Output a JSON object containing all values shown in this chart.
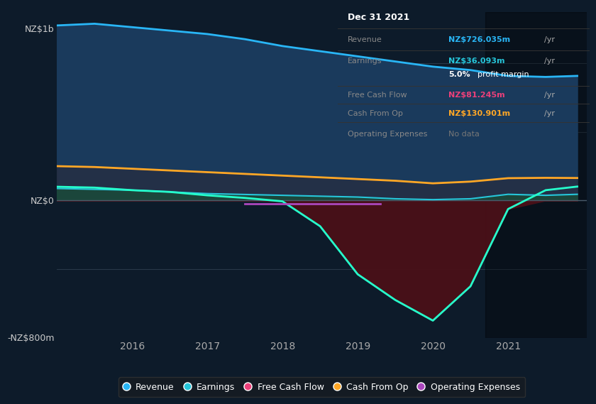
{
  "bg_color": "#0d1b2a",
  "plot_bg_color": "#0d1b2a",
  "ylabel_top": "NZ$1b",
  "ylabel_zero": "NZ$0",
  "ylabel_bottom": "-NZ$800m",
  "years": [
    2015.0,
    2015.5,
    2016.0,
    2016.5,
    2017.0,
    2017.5,
    2018.0,
    2018.5,
    2019.0,
    2019.5,
    2020.0,
    2020.5,
    2021.0,
    2021.5,
    2021.92
  ],
  "revenue": [
    1020,
    1030,
    1010,
    990,
    970,
    940,
    900,
    870,
    840,
    810,
    780,
    760,
    726,
    720,
    726
  ],
  "earnings": [
    70,
    65,
    60,
    50,
    40,
    35,
    30,
    25,
    20,
    10,
    5,
    10,
    36,
    30,
    36
  ],
  "free_cash_flow": [
    80,
    75,
    60,
    50,
    30,
    15,
    -5,
    -150,
    -430,
    -580,
    -700,
    -500,
    -50,
    60,
    81
  ],
  "cash_from_op": [
    200,
    195,
    185,
    175,
    165,
    155,
    145,
    135,
    125,
    115,
    100,
    110,
    130,
    132,
    131
  ],
  "op_expenses_x": [
    2017.5,
    2018.0,
    2018.5,
    2019.0,
    2019.3
  ],
  "op_expenses_y": [
    -20,
    -20,
    -20,
    -20,
    -20
  ],
  "revenue_color": "#29b6f6",
  "earnings_color": "#26c6da",
  "fcf_color": "#26ffcc",
  "cash_from_op_color": "#ffa726",
  "op_expenses_color": "#ab47bc",
  "revenue_fill_color": "#1a3a5c",
  "earnings_fill_color": "#1a4a3a",
  "fcf_fill_neg_color": "#4a1018",
  "cashop_fill_color": "#2a2a3a",
  "tooltip": {
    "date": "Dec 31 2021",
    "revenue_label": "Revenue",
    "revenue_value": "NZ$726.035m",
    "revenue_color": "#29b6f6",
    "earnings_label": "Earnings",
    "earnings_value": "NZ$36.093m",
    "earnings_color": "#26c6da",
    "margin_value": "5.0%",
    "margin_label": "profit margin",
    "fcf_label": "Free Cash Flow",
    "fcf_value": "NZ$81.245m",
    "fcf_color": "#ec407a",
    "cashop_label": "Cash From Op",
    "cashop_value": "NZ$130.901m",
    "cashop_color": "#ffa726",
    "opex_label": "Operating Expenses",
    "opex_value": "No data",
    "opex_color": "#777777"
  },
  "legend": [
    {
      "label": "Revenue",
      "color": "#29b6f6"
    },
    {
      "label": "Earnings",
      "color": "#26c6da"
    },
    {
      "label": "Free Cash Flow",
      "color": "#ec407a"
    },
    {
      "label": "Cash From Op",
      "color": "#ffa726"
    },
    {
      "label": "Operating Expenses",
      "color": "#ab47bc"
    }
  ]
}
